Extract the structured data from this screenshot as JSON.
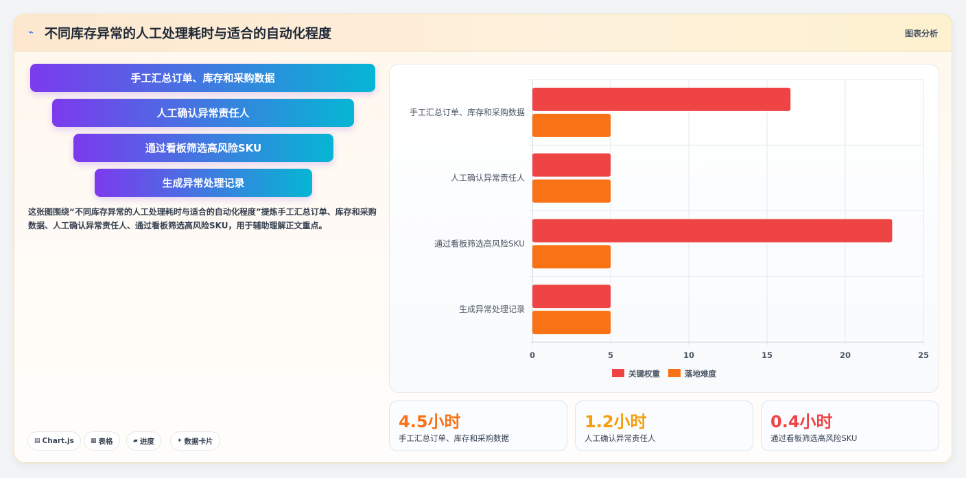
{
  "header": {
    "icon": "chart-line-icon",
    "title": "不同库存异常的人工处理耗时与适合的自动化程度",
    "tag": "图表分析"
  },
  "steps": [
    "手工汇总订单、库存和采购数据",
    "人工确认异常责任人",
    "通过看板筛选高风险SKU",
    "生成异常处理记录"
  ],
  "description": "这张图围绕“不同库存异常的人工处理耗时与适合的自动化程度”提炼手工汇总订单、库存和采购数据、人工确认异常责任人、通过看板筛选高风险SKU，用于辅助理解正文重点。",
  "chips": [
    {
      "icon": "chart-icon",
      "glyph": "▤",
      "label": "Chart.js"
    },
    {
      "icon": "table-icon",
      "glyph": "▦",
      "label": "表格"
    },
    {
      "icon": "progress-icon",
      "glyph": "▰",
      "label": "进度"
    },
    {
      "icon": "sparkle-icon",
      "glyph": "✦",
      "label": "数据卡片"
    }
  ],
  "stats": [
    {
      "value": "4.5小时",
      "label": "手工汇总订单、库存和采购数据",
      "color": "#f97316"
    },
    {
      "value": "1.2小时",
      "label": "人工确认异常责任人",
      "color": "#f59e0b"
    },
    {
      "value": "0.4小时",
      "label": "通过看板筛选高风险SKU",
      "color": "#ef4444"
    }
  ],
  "chart_data": {
    "type": "bar",
    "orientation": "horizontal",
    "categories": [
      "手工汇总订单、库存和采购数据",
      "人工确认异常责任人",
      "通过看板筛选高风险SKU",
      "生成异常处理记录"
    ],
    "series": [
      {
        "name": "关键权重",
        "color": "#ef4444",
        "values": [
          16.5,
          5,
          23,
          5
        ]
      },
      {
        "name": "落地难度",
        "color": "#f97316",
        "values": [
          5,
          5,
          5,
          5
        ]
      }
    ],
    "xlim": [
      0,
      25
    ],
    "xticks": [
      0,
      5,
      10,
      15,
      20,
      25
    ],
    "grid": true,
    "legend": "bottom"
  }
}
